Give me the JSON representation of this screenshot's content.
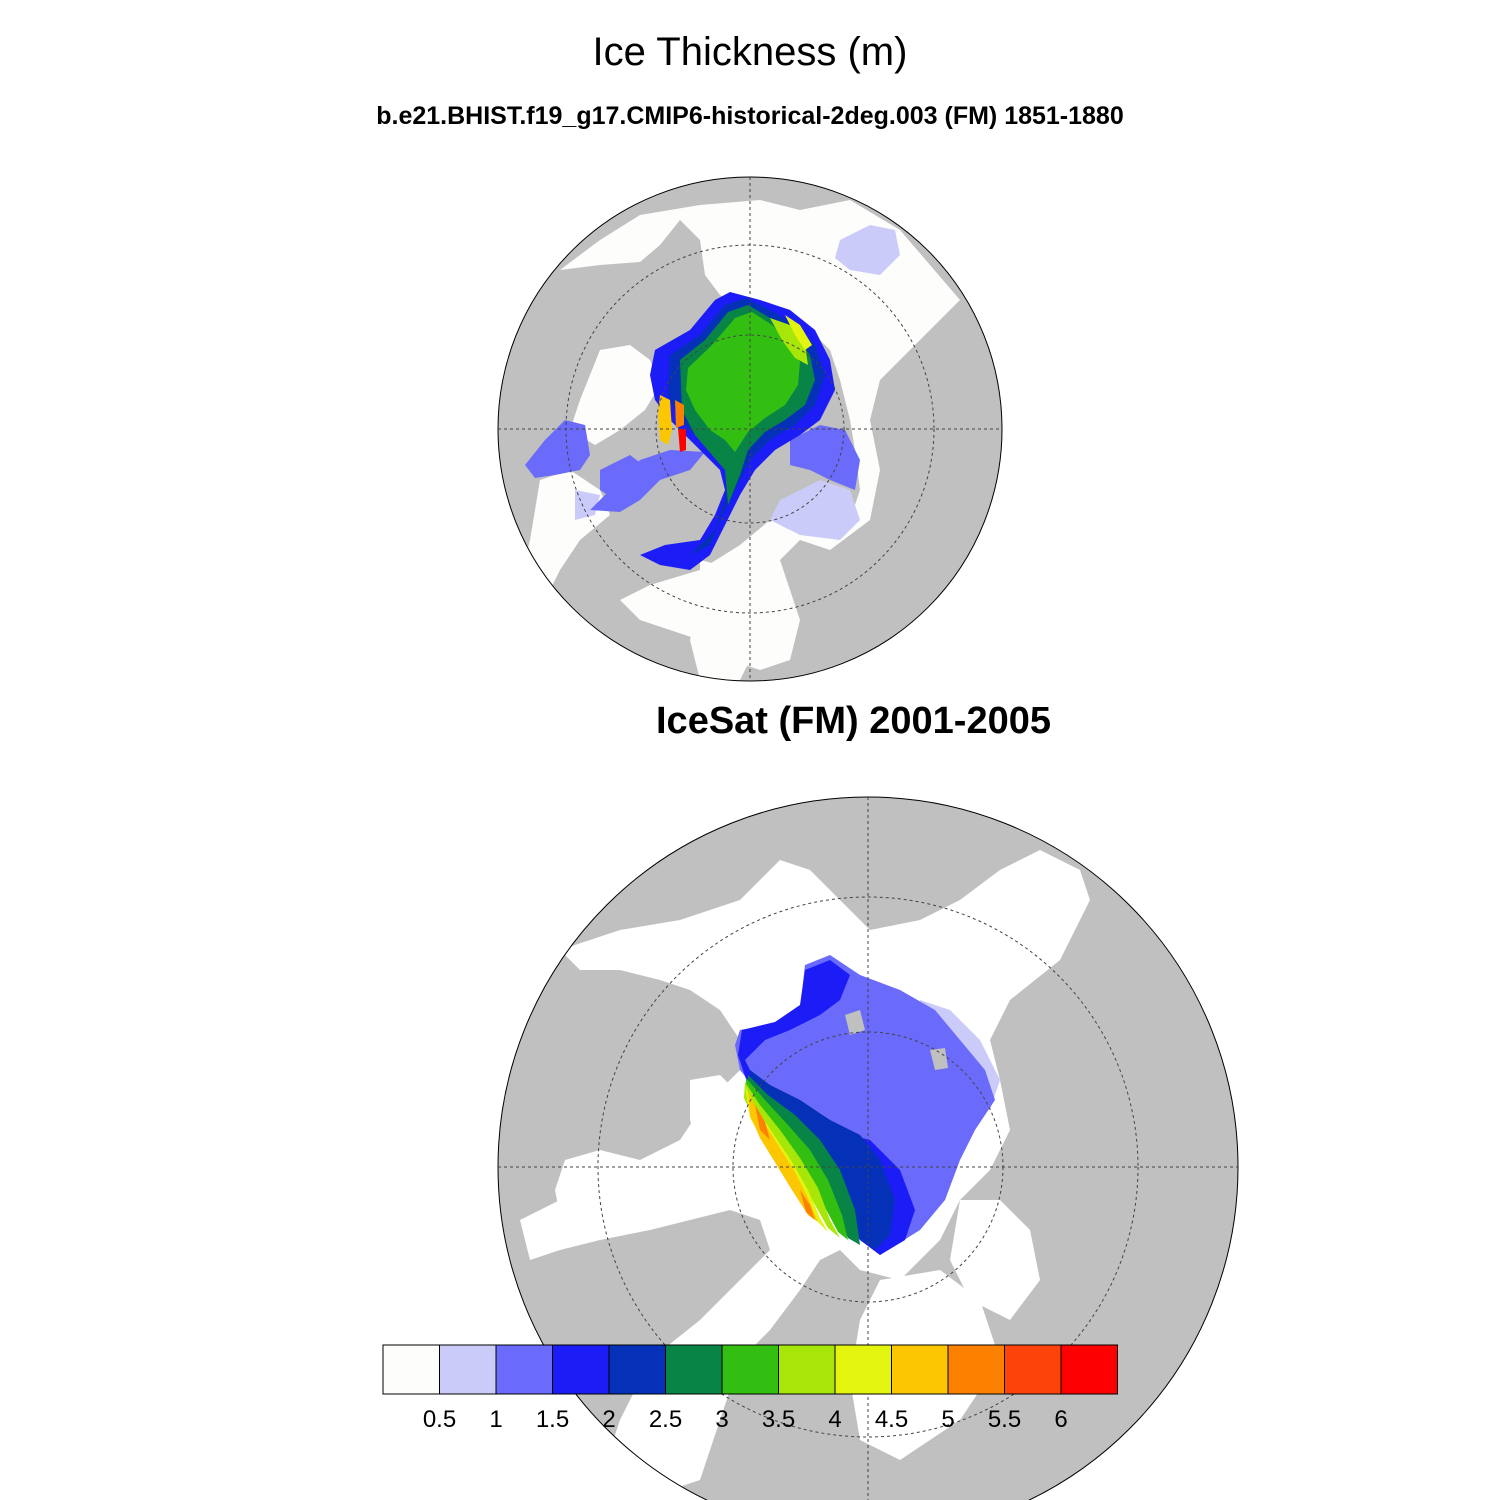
{
  "title": "Ice Thickness (m)",
  "subtitle": "b.e21.BHIST.f19_g17.CMIP6-historical-2deg.003 (FM) 1851-1880",
  "panels": [
    {
      "name": "model",
      "title": ""
    },
    {
      "name": "observations",
      "title": "IceSat (FM) 2001-2005"
    }
  ],
  "colorbar": {
    "colors": [
      "#fdfdfb",
      "#cbcbf9",
      "#6a6afb",
      "#1c1cf6",
      "#0530b8",
      "#078446",
      "#33bf12",
      "#a8e60a",
      "#e3f50e",
      "#fcc700",
      "#fd8100",
      "#fd420a",
      "#fd0000"
    ],
    "tick_labels": [
      "0.5",
      "1",
      "1.5",
      "2",
      "2.5",
      "3",
      "3.5",
      "4",
      "4.5",
      "5",
      "5.5",
      "6"
    ]
  },
  "colors": {
    "land": "#c0c0c0",
    "ocean": "#ffffff"
  }
}
